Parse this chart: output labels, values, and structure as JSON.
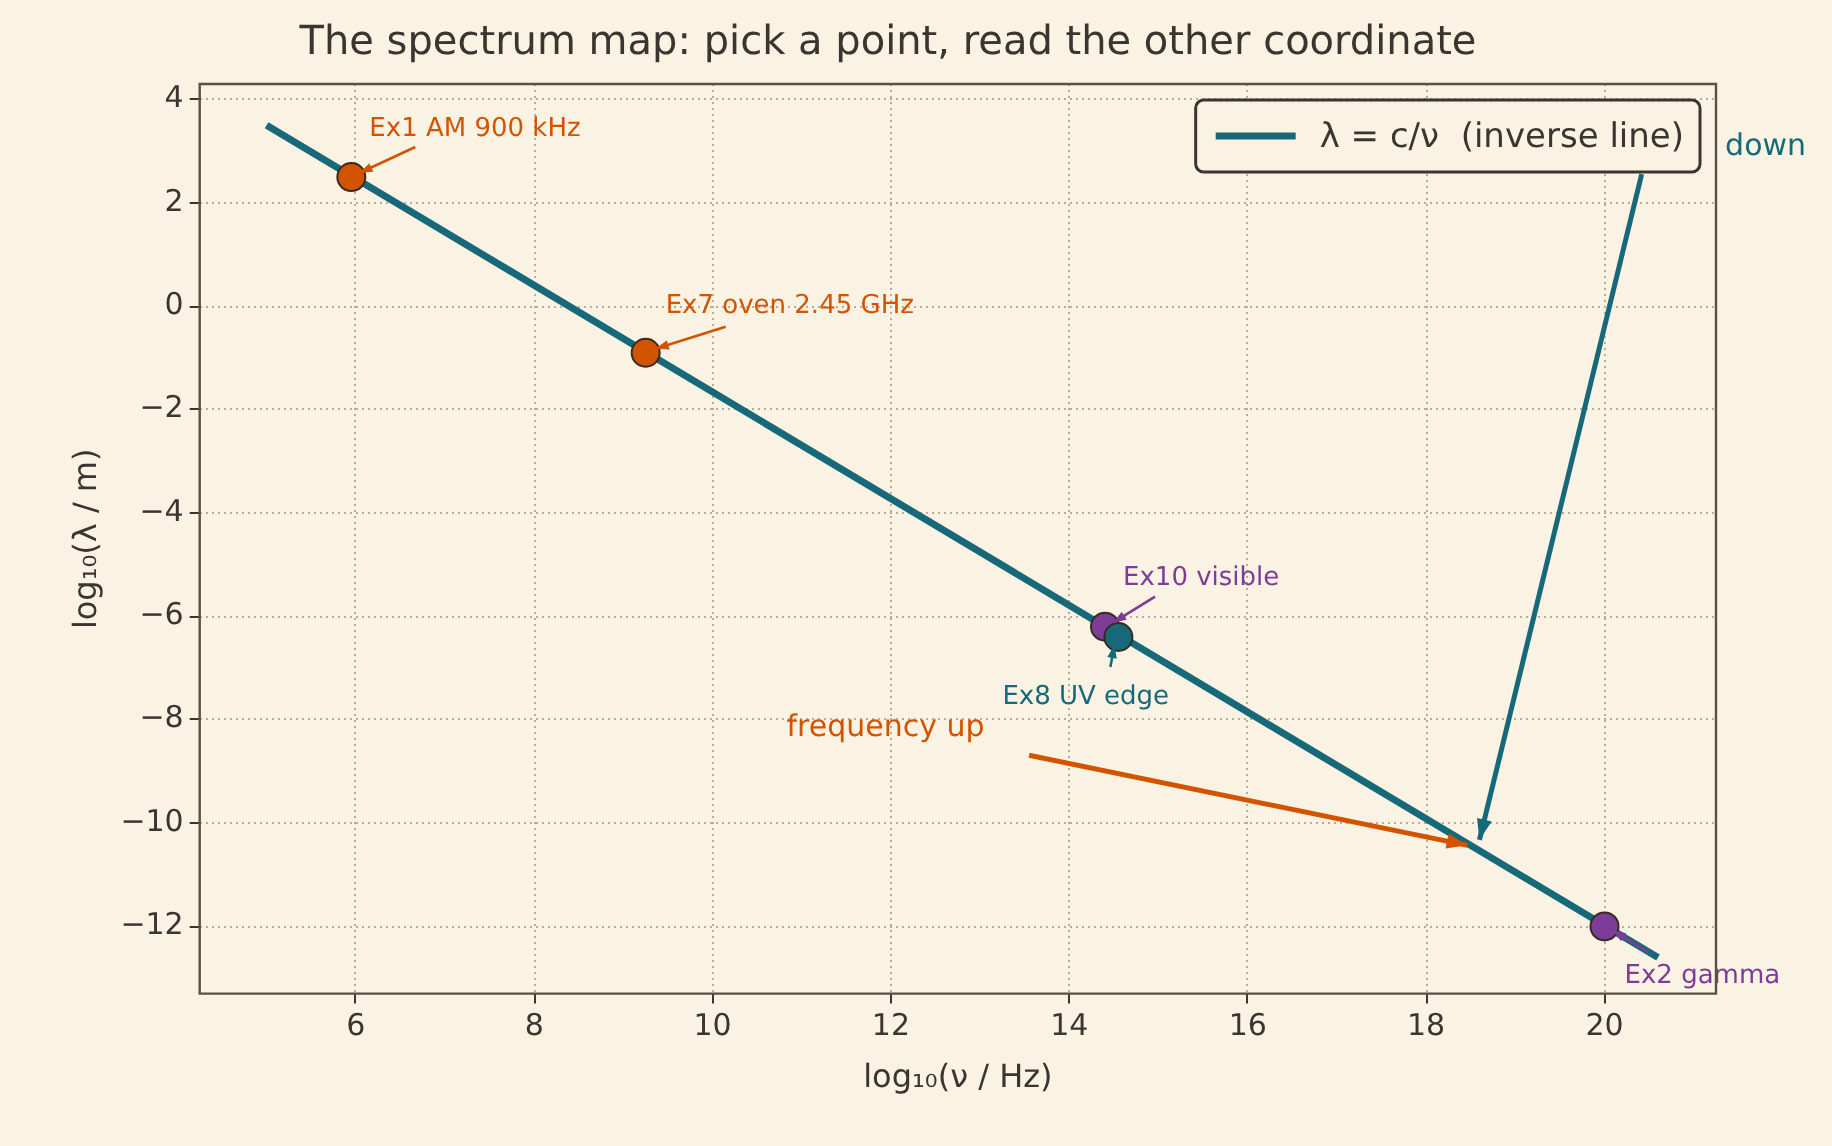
{
  "chart_data": {
    "type": "line",
    "title": "The spectrum map: pick a point, read the other coordinate",
    "xlabel": "log₁₀(ν / Hz)",
    "ylabel": "log₁₀(λ / m)",
    "series": [
      {
        "name": "λ = c/ν  (inverse line)",
        "color": "#17697a",
        "x": [
          5.0,
          20.6
        ],
        "values": [
          3.5,
          -12.6
        ]
      },
      {
        "type": "scatter",
        "marker": "circle",
        "x": [
          5.95,
          9.25,
          14.4,
          14.55,
          20.0
        ],
        "values": [
          2.5,
          -0.9,
          -6.2,
          -6.4,
          -12.0
        ],
        "colors": [
          "#d35400",
          "#d35400",
          "#7d3c98",
          "#17697a",
          "#7d3c98"
        ]
      }
    ],
    "annotations": [
      {
        "text": "Ex1 AM 900 kHz",
        "x": 5.95,
        "y": 2.5
      },
      {
        "text": "Ex7 oven 2.45 GHz",
        "x": 9.25,
        "y": -0.9
      },
      {
        "text": "Ex10 visible",
        "x": 14.4,
        "y": -6.2
      },
      {
        "text": "Ex8 UV edge",
        "x": 14.55,
        "y": -6.4
      },
      {
        "text": "Ex2 gamma",
        "x": 20.0,
        "y": -12.0
      },
      "frequency up",
      "down"
    ],
    "xlim": [
      4.25,
      21.25
    ],
    "xticks": [
      6,
      8,
      10,
      12,
      14,
      16,
      18,
      20
    ],
    "ylim": [
      -13.3,
      4.3
    ],
    "yticks": [
      -12,
      -10,
      -8,
      -6,
      -4,
      -2,
      0,
      2,
      4
    ],
    "grid": true,
    "legend": "top right",
    "line_style": "solid"
  }
}
